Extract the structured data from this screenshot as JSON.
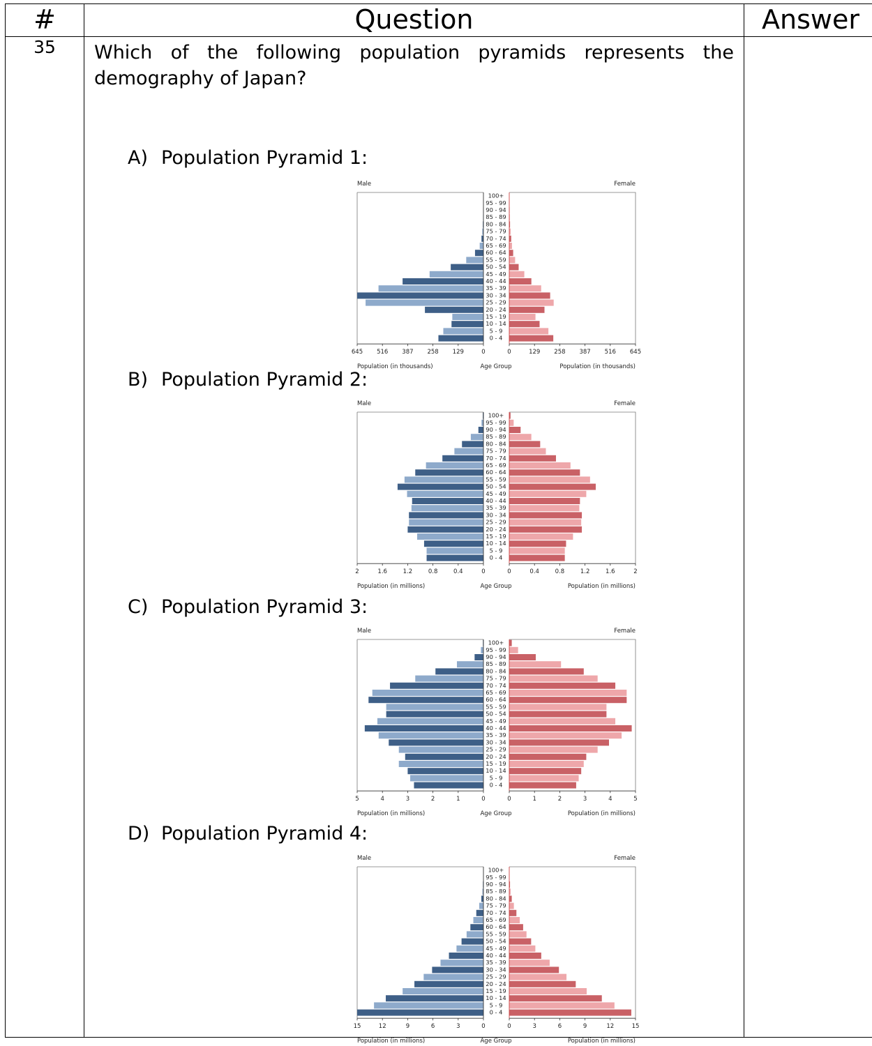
{
  "table": {
    "headers": [
      "#",
      "Question",
      "Answer"
    ],
    "number": "35",
    "question": "Which of the following population pyramids represents the demography of Japan?",
    "answer": ""
  },
  "options": [
    {
      "letter": "A)",
      "label": "Population Pyramid 1:"
    },
    {
      "letter": "B)",
      "label": "Population Pyramid 2:"
    },
    {
      "letter": "C)",
      "label": "Population Pyramid 3:"
    },
    {
      "letter": "D)",
      "label": "Population Pyramid 4:"
    }
  ],
  "colors": {
    "male_dark": "#3e5f87",
    "male_light": "#8eaacb",
    "female_dark": "#c96166",
    "female_light": "#eea7aa"
  },
  "chart_data": [
    {
      "type": "bar",
      "male_label": "Male",
      "female_label": "Female",
      "center_label": "Age Group",
      "xlabel": "Population (in thousands)",
      "xlim": [
        0,
        645
      ],
      "ticks": [
        "645",
        "516",
        "387",
        "258",
        "129",
        "0"
      ],
      "tick_values": [
        645,
        516,
        387,
        258,
        129,
        0
      ],
      "categories": [
        "100+",
        "95 - 99",
        "90 - 94",
        "85 - 89",
        "80 - 84",
        "75 - 79",
        "70 - 74",
        "65 - 69",
        "60 - 64",
        "55 - 59",
        "50 - 54",
        "45 - 49",
        "40 - 44",
        "35 - 39",
        "30 - 34",
        "25 - 29",
        "20 - 24",
        "15 - 19",
        "10 - 14",
        "5 - 9",
        "0 - 4"
      ],
      "series": [
        {
          "name": "Male",
          "values": [
            0,
            0,
            1,
            2,
            3,
            6,
            10,
            19,
            43,
            88,
            167,
            275,
            413,
            536,
            645,
            602,
            299,
            159,
            163,
            205,
            230
          ]
        },
        {
          "name": "Female",
          "values": [
            0,
            1,
            2,
            3,
            4,
            7,
            10,
            14,
            20,
            30,
            48,
            77,
            113,
            163,
            209,
            227,
            180,
            134,
            155,
            200,
            225
          ]
        }
      ]
    },
    {
      "type": "bar",
      "male_label": "Male",
      "female_label": "Female",
      "center_label": "Age Group",
      "xlabel": "Population (in millions)",
      "xlim": [
        0,
        2
      ],
      "ticks": [
        "2",
        "1.6",
        "1.2",
        "0.8",
        "0.4",
        "0"
      ],
      "tick_values": [
        2,
        1.6,
        1.2,
        0.8,
        0.4,
        0
      ],
      "categories": [
        "100+",
        "95 - 99",
        "90 - 94",
        "85 - 89",
        "80 - 84",
        "75 - 79",
        "70 - 74",
        "65 - 69",
        "60 - 64",
        "55 - 59",
        "50 - 54",
        "45 - 49",
        "40 - 44",
        "35 - 39",
        "30 - 34",
        "25 - 29",
        "20 - 24",
        "15 - 19",
        "10 - 14",
        "5 - 9",
        "0 - 4"
      ],
      "series": [
        {
          "name": "Male",
          "values": [
            0.01,
            0.03,
            0.08,
            0.2,
            0.34,
            0.46,
            0.65,
            0.91,
            1.08,
            1.25,
            1.36,
            1.21,
            1.13,
            1.14,
            1.18,
            1.18,
            1.2,
            1.05,
            0.94,
            0.9,
            0.9
          ]
        },
        {
          "name": "Female",
          "values": [
            0.02,
            0.07,
            0.18,
            0.35,
            0.49,
            0.58,
            0.74,
            0.97,
            1.12,
            1.28,
            1.37,
            1.22,
            1.12,
            1.11,
            1.15,
            1.14,
            1.15,
            1.01,
            0.9,
            0.88,
            0.88
          ]
        }
      ]
    },
    {
      "type": "bar",
      "male_label": "Male",
      "female_label": "Female",
      "center_label": "Age Group",
      "xlabel": "Population (in millions)",
      "xlim": [
        0,
        5
      ],
      "ticks": [
        "5",
        "4",
        "3",
        "2",
        "1",
        "0"
      ],
      "tick_values": [
        5,
        4,
        3,
        2,
        1,
        0
      ],
      "categories": [
        "100+",
        "95 - 99",
        "90 - 94",
        "85 - 89",
        "80 - 84",
        "75 - 79",
        "70 - 74",
        "65 - 69",
        "60 - 64",
        "55 - 59",
        "50 - 54",
        "45 - 49",
        "40 - 44",
        "35 - 39",
        "30 - 34",
        "25 - 29",
        "20 - 24",
        "15 - 19",
        "10 - 14",
        "5 - 9",
        "0 - 4"
      ],
      "series": [
        {
          "name": "Male",
          "values": [
            0.02,
            0.1,
            0.35,
            1.05,
            1.9,
            2.7,
            3.7,
            4.4,
            4.55,
            3.85,
            3.85,
            4.2,
            4.7,
            4.15,
            3.75,
            3.35,
            3.1,
            3.35,
            3.0,
            2.9,
            2.75
          ]
        },
        {
          "name": "Female",
          "values": [
            0.1,
            0.35,
            1.05,
            2.05,
            2.95,
            3.5,
            4.2,
            4.65,
            4.65,
            3.85,
            3.85,
            4.2,
            4.85,
            4.45,
            3.95,
            3.5,
            3.05,
            2.95,
            2.85,
            2.75,
            2.65
          ]
        }
      ]
    },
    {
      "type": "bar",
      "male_label": "Male",
      "female_label": "Female",
      "center_label": "Age Group",
      "xlabel": "Population (in millions)",
      "xlim": [
        0,
        15
      ],
      "ticks": [
        "15",
        "12",
        "9",
        "6",
        "3",
        "0"
      ],
      "tick_values": [
        15,
        12,
        9,
        6,
        3,
        0
      ],
      "categories": [
        "100+",
        "95 - 99",
        "90 - 94",
        "85 - 89",
        "80 - 84",
        "75 - 79",
        "70 - 74",
        "65 - 69",
        "60 - 64",
        "55 - 59",
        "50 - 54",
        "45 - 49",
        "40 - 44",
        "35 - 39",
        "30 - 34",
        "25 - 29",
        "20 - 24",
        "15 - 19",
        "10 - 14",
        "5 - 9",
        "0 - 4"
      ],
      "series": [
        {
          "name": "Male",
          "values": [
            0.01,
            0.03,
            0.06,
            0.12,
            0.25,
            0.5,
            0.85,
            1.2,
            1.55,
            2.0,
            2.6,
            3.2,
            4.1,
            5.1,
            6.1,
            7.1,
            8.2,
            9.6,
            11.6,
            13.0,
            15.0
          ]
        },
        {
          "name": "Female",
          "values": [
            0.01,
            0.04,
            0.09,
            0.16,
            0.3,
            0.55,
            0.85,
            1.25,
            1.65,
            2.05,
            2.6,
            3.1,
            3.8,
            4.8,
            5.9,
            6.8,
            7.9,
            9.2,
            11.0,
            12.5,
            14.5
          ]
        }
      ]
    }
  ]
}
